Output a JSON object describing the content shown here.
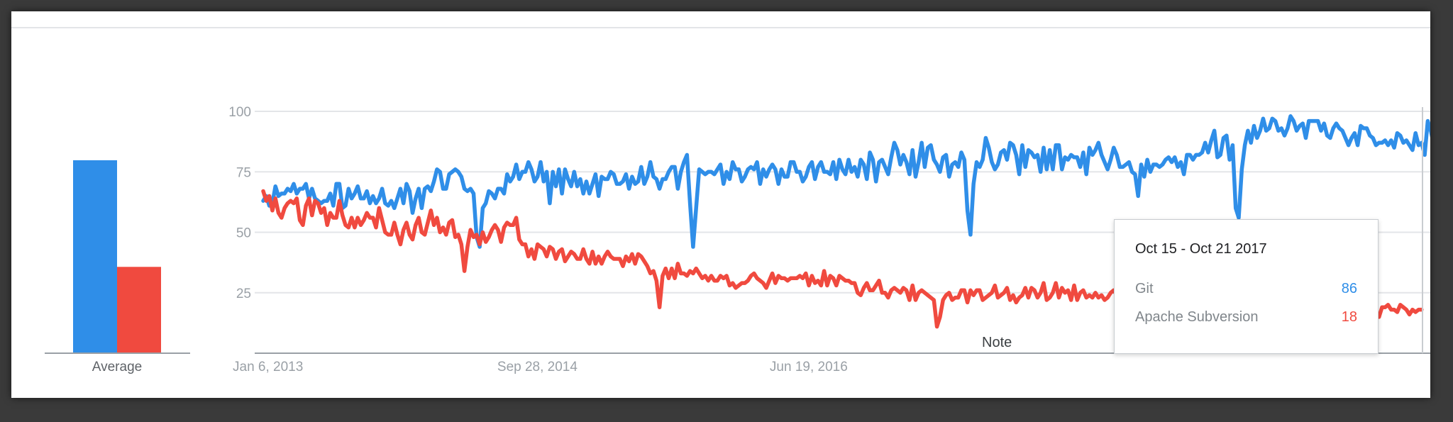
{
  "chart_data": [
    {
      "type": "bar",
      "categories": [
        "Git",
        "Apache Subversion"
      ],
      "values": [
        76,
        34
      ],
      "xlabel": "Average",
      "ylim": [
        0,
        100
      ],
      "colors": [
        "#2f8ee8",
        "#f04a3f"
      ]
    },
    {
      "type": "line",
      "x_ticks": [
        "Jan 6, 2013",
        "Sep 28, 2014",
        "Jun 19, 2016"
      ],
      "yticks": [
        25,
        50,
        75,
        100
      ],
      "ylim": [
        0,
        100
      ],
      "grid": true,
      "annotation": "Note",
      "series": [
        {
          "name": "Git",
          "color": "#2f8ee8",
          "values": [
            63,
            65,
            61,
            62,
            69,
            65,
            66,
            66,
            68,
            67,
            70,
            66,
            68,
            68,
            70,
            64,
            68,
            64,
            63,
            62,
            63,
            63,
            66,
            61,
            70,
            70,
            60,
            61,
            68,
            64,
            66,
            69,
            64,
            64,
            67,
            62,
            65,
            62,
            64,
            68,
            62,
            61,
            63,
            60,
            64,
            68,
            62,
            70,
            67,
            58,
            64,
            68,
            60,
            68,
            69,
            67,
            71,
            76,
            75,
            68,
            68,
            74,
            75,
            76,
            75,
            73,
            68,
            67,
            68,
            66,
            48,
            44,
            60,
            62,
            67,
            66,
            64,
            68,
            68,
            66,
            74,
            71,
            73,
            78,
            72,
            75,
            75,
            79,
            76,
            71,
            73,
            79,
            71,
            75,
            62,
            75,
            69,
            76,
            66,
            76,
            72,
            69,
            75,
            69,
            72,
            66,
            71,
            66,
            70,
            74,
            65,
            73,
            72,
            72,
            75,
            74,
            70,
            70,
            71,
            74,
            68,
            73,
            70,
            71,
            77,
            70,
            73,
            79,
            73,
            72,
            68,
            72,
            72,
            75,
            77,
            77,
            68,
            75,
            79,
            82,
            62,
            44,
            60,
            76,
            75,
            74,
            75,
            75,
            74,
            76,
            78,
            70,
            75,
            72,
            79,
            76,
            76,
            71,
            73,
            76,
            77,
            76,
            79,
            70,
            76,
            73,
            76,
            78,
            76,
            70,
            76,
            73,
            73,
            79,
            79,
            75,
            75,
            71,
            73,
            77,
            79,
            72,
            77,
            79,
            75,
            75,
            74,
            79,
            72,
            80,
            76,
            74,
            80,
            75,
            77,
            73,
            80,
            78,
            72,
            83,
            80,
            71,
            79,
            80,
            77,
            74,
            81,
            87,
            84,
            78,
            82,
            79,
            74,
            84,
            73,
            79,
            87,
            77,
            85,
            86,
            80,
            78,
            75,
            81,
            82,
            73,
            78,
            79,
            77,
            83,
            80,
            59,
            49,
            70,
            79,
            77,
            80,
            89,
            85,
            79,
            76,
            78,
            83,
            84,
            80,
            87,
            86,
            82,
            74,
            86,
            77,
            84,
            83,
            81,
            82,
            75,
            85,
            76,
            84,
            76,
            86,
            86,
            76,
            81,
            80,
            82,
            81,
            81,
            77,
            83,
            74,
            85,
            82,
            84,
            87,
            82,
            79,
            76,
            80,
            85,
            82,
            77,
            77,
            78,
            79,
            75,
            74,
            65,
            78,
            73,
            80,
            75,
            78,
            78,
            77,
            78,
            80,
            81,
            79,
            81,
            77,
            79,
            74,
            82,
            82,
            80,
            82,
            82,
            83,
            87,
            83,
            88,
            92,
            81,
            82,
            89,
            90,
            80,
            86,
            60,
            56,
            76,
            86,
            92,
            87,
            94,
            89,
            92,
            97,
            92,
            93,
            97,
            96,
            92,
            93,
            90,
            93,
            98,
            96,
            92,
            94,
            95,
            89,
            96,
            96,
            96,
            96,
            92,
            95,
            90,
            89,
            93,
            95,
            93,
            92,
            89,
            86,
            89,
            91,
            86,
            94,
            93,
            93,
            90,
            89,
            86,
            87,
            87,
            88,
            86,
            88,
            85,
            91,
            90,
            87,
            88,
            86,
            84,
            91,
            86,
            87,
            82,
            96,
            92,
            86
          ]
        },
        {
          "name": "Apache Subversion",
          "color": "#f04a3f",
          "values": [
            67,
            63,
            65,
            59,
            64,
            58,
            56,
            60,
            62,
            63,
            62,
            64,
            55,
            53,
            61,
            64,
            57,
            63,
            62,
            58,
            60,
            53,
            58,
            56,
            56,
            63,
            57,
            53,
            52,
            56,
            52,
            56,
            53,
            55,
            58,
            56,
            56,
            52,
            60,
            55,
            50,
            49,
            49,
            54,
            49,
            45,
            51,
            54,
            49,
            47,
            53,
            56,
            50,
            49,
            54,
            59,
            53,
            56,
            50,
            52,
            49,
            54,
            55,
            48,
            49,
            45,
            34,
            44,
            51,
            48,
            49,
            45,
            50,
            46,
            48,
            51,
            53,
            51,
            46,
            52,
            54,
            53,
            53,
            56,
            47,
            45,
            45,
            40,
            43,
            39,
            45,
            44,
            43,
            40,
            44,
            43,
            39,
            42,
            43,
            38,
            40,
            42,
            41,
            39,
            39,
            43,
            39,
            37,
            42,
            37,
            40,
            37,
            40,
            42,
            40,
            39,
            39,
            39,
            36,
            40,
            38,
            41,
            37,
            41,
            40,
            38,
            36,
            33,
            34,
            30,
            19,
            32,
            35,
            31,
            35,
            31,
            37,
            33,
            33,
            32,
            34,
            33,
            35,
            33,
            31,
            32,
            30,
            32,
            30,
            30,
            32,
            31,
            32,
            28,
            29,
            27,
            28,
            29,
            29,
            30,
            32,
            33,
            31,
            30,
            29,
            27,
            30,
            33,
            29,
            32,
            31,
            31,
            30,
            31,
            31,
            31,
            32,
            31,
            33,
            28,
            32,
            29,
            30,
            28,
            34,
            28,
            32,
            31,
            28,
            32,
            31,
            30,
            30,
            29,
            29,
            25,
            24,
            27,
            29,
            26,
            26,
            28,
            30,
            25,
            25,
            23,
            26,
            27,
            26,
            25,
            27,
            26,
            22,
            28,
            22,
            25,
            26,
            25,
            24,
            23,
            22,
            11,
            15,
            22,
            24,
            25,
            22,
            23,
            23,
            26,
            26,
            21,
            26,
            24,
            26,
            26,
            22,
            23,
            24,
            25,
            28,
            23,
            24,
            25,
            27,
            22,
            24,
            21,
            23,
            24,
            27,
            23,
            27,
            26,
            23,
            25,
            29,
            22,
            23,
            25,
            29,
            23,
            27,
            25,
            26,
            22,
            28,
            22,
            25,
            26,
            23,
            24,
            23,
            25,
            23,
            24,
            22,
            23,
            25,
            26,
            24,
            22,
            22,
            26,
            24,
            23,
            26,
            23,
            25,
            23,
            22,
            23,
            20,
            22,
            21,
            23,
            23,
            22,
            23,
            19,
            21,
            17,
            20,
            20,
            23,
            21,
            20,
            18,
            19,
            21,
            22,
            20,
            19,
            23,
            21,
            19,
            22,
            21,
            20,
            19,
            24,
            20,
            19,
            22,
            22,
            18,
            20,
            22,
            19,
            22,
            18,
            21,
            20,
            21,
            20,
            19,
            22,
            19,
            20,
            16,
            19,
            18,
            21,
            20,
            18,
            21,
            20,
            19,
            21,
            21,
            22,
            18,
            21,
            19,
            20,
            22,
            20,
            19,
            23,
            20,
            16,
            18,
            17,
            18,
            20,
            16,
            15,
            19,
            19,
            20,
            18,
            18,
            17,
            20,
            19,
            18,
            16,
            18,
            17,
            18,
            18
          ]
        }
      ]
    }
  ],
  "tooltip": {
    "date": "Oct 15 - Oct 21 2017",
    "items": [
      {
        "name": "Git",
        "value": "86",
        "color": "#2f8ee8"
      },
      {
        "name": "Apache Subversion",
        "value": "18",
        "color": "#f04a3f"
      }
    ]
  }
}
